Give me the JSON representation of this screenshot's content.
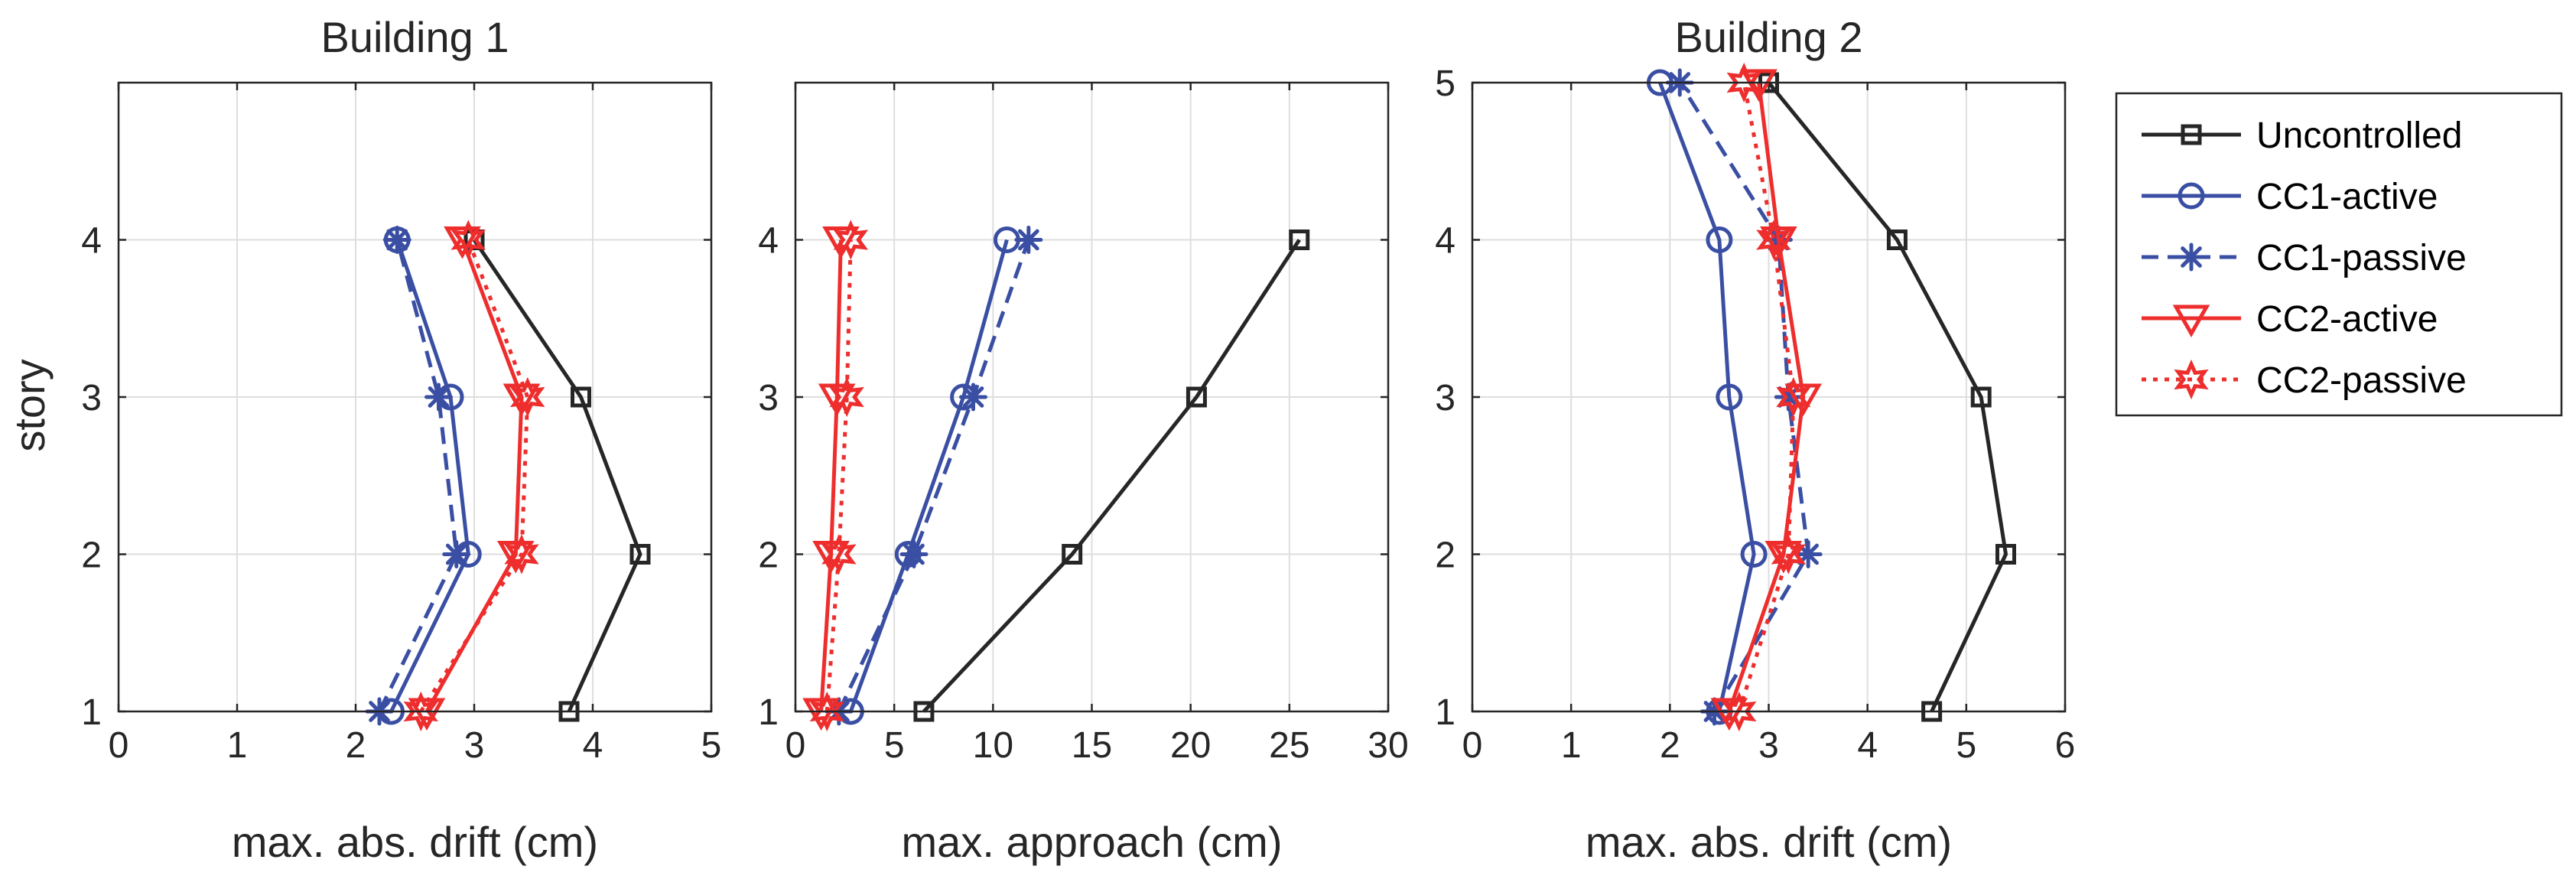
{
  "figure": {
    "ylabel": "story",
    "legend_position": "outside-right",
    "entries": [
      {
        "key": "uncontrolled",
        "label": "Uncontrolled",
        "color": "#262626",
        "marker": "square",
        "dash": "solid"
      },
      {
        "key": "cc1_active",
        "label": "CC1-active",
        "color": "#3a4fa3",
        "marker": "circle",
        "dash": "solid"
      },
      {
        "key": "cc1_passive",
        "label": "CC1-passive",
        "color": "#3a4fa3",
        "marker": "asterisk",
        "dash": "dashed"
      },
      {
        "key": "cc2_active",
        "label": "CC2-active",
        "color": "#ee2d2d",
        "marker": "triangle",
        "dash": "solid"
      },
      {
        "key": "cc2_passive",
        "label": "CC2-passive",
        "color": "#ee2d2d",
        "marker": "hexagram",
        "dash": "dotted"
      }
    ]
  },
  "chart_data": [
    {
      "type": "line",
      "title": "Building 1",
      "xlabel": "max. abs. drift (cm)",
      "ylabel": "story",
      "xlim": [
        0,
        5
      ],
      "ylim": [
        1,
        5
      ],
      "xticks": [
        0,
        1,
        2,
        3,
        4,
        5
      ],
      "yticks": [
        1,
        2,
        3,
        4
      ],
      "grid": true,
      "y": [
        1,
        2,
        3,
        4
      ],
      "series": [
        {
          "name": "Uncontrolled",
          "x": [
            3.8,
            4.4,
            3.9,
            3.0
          ]
        },
        {
          "name": "CC1-active",
          "x": [
            2.3,
            2.95,
            2.8,
            2.35
          ]
        },
        {
          "name": "CC1-passive",
          "x": [
            2.2,
            2.85,
            2.7,
            2.35
          ]
        },
        {
          "name": "CC2-active",
          "x": [
            2.6,
            3.35,
            3.4,
            2.9
          ]
        },
        {
          "name": "CC2-passive",
          "x": [
            2.55,
            3.4,
            3.45,
            2.95
          ]
        }
      ]
    },
    {
      "type": "line",
      "title": "",
      "xlabel": "max. approach (cm)",
      "ylabel": "",
      "xlim": [
        0,
        30
      ],
      "ylim": [
        1,
        5
      ],
      "xticks": [
        0,
        5,
        10,
        15,
        20,
        25,
        30
      ],
      "yticks": [
        1,
        2,
        3,
        4
      ],
      "grid": true,
      "y": [
        1,
        2,
        3,
        4
      ],
      "series": [
        {
          "name": "Uncontrolled",
          "x": [
            6.5,
            14.0,
            20.3,
            25.5
          ]
        },
        {
          "name": "CC1-active",
          "x": [
            2.8,
            5.7,
            8.5,
            10.7
          ]
        },
        {
          "name": "CC1-passive",
          "x": [
            2.2,
            6.0,
            9.0,
            11.8
          ]
        },
        {
          "name": "CC2-active",
          "x": [
            1.3,
            1.8,
            2.1,
            2.3
          ]
        },
        {
          "name": "CC2-passive",
          "x": [
            1.6,
            2.2,
            2.6,
            2.8
          ]
        }
      ]
    },
    {
      "type": "line",
      "title": "Building 2",
      "xlabel": "max. abs. drift (cm)",
      "ylabel": "",
      "xlim": [
        0,
        6
      ],
      "ylim": [
        1,
        5
      ],
      "xticks": [
        0,
        1,
        2,
        3,
        4,
        5,
        6
      ],
      "yticks": [
        1,
        2,
        3,
        4,
        5
      ],
      "grid": true,
      "y": [
        1,
        2,
        3,
        4,
        5
      ],
      "series": [
        {
          "name": "Uncontrolled",
          "x": [
            4.65,
            5.4,
            5.15,
            4.3,
            3.0
          ]
        },
        {
          "name": "CC1-active",
          "x": [
            2.5,
            2.85,
            2.6,
            2.5,
            1.9
          ]
        },
        {
          "name": "CC1-passive",
          "x": [
            2.45,
            3.4,
            3.2,
            3.1,
            2.1
          ]
        },
        {
          "name": "CC2-active",
          "x": [
            2.6,
            3.15,
            3.35,
            3.1,
            2.9
          ]
        },
        {
          "name": "CC2-passive",
          "x": [
            2.7,
            3.2,
            3.25,
            3.05,
            2.75
          ]
        }
      ]
    }
  ]
}
